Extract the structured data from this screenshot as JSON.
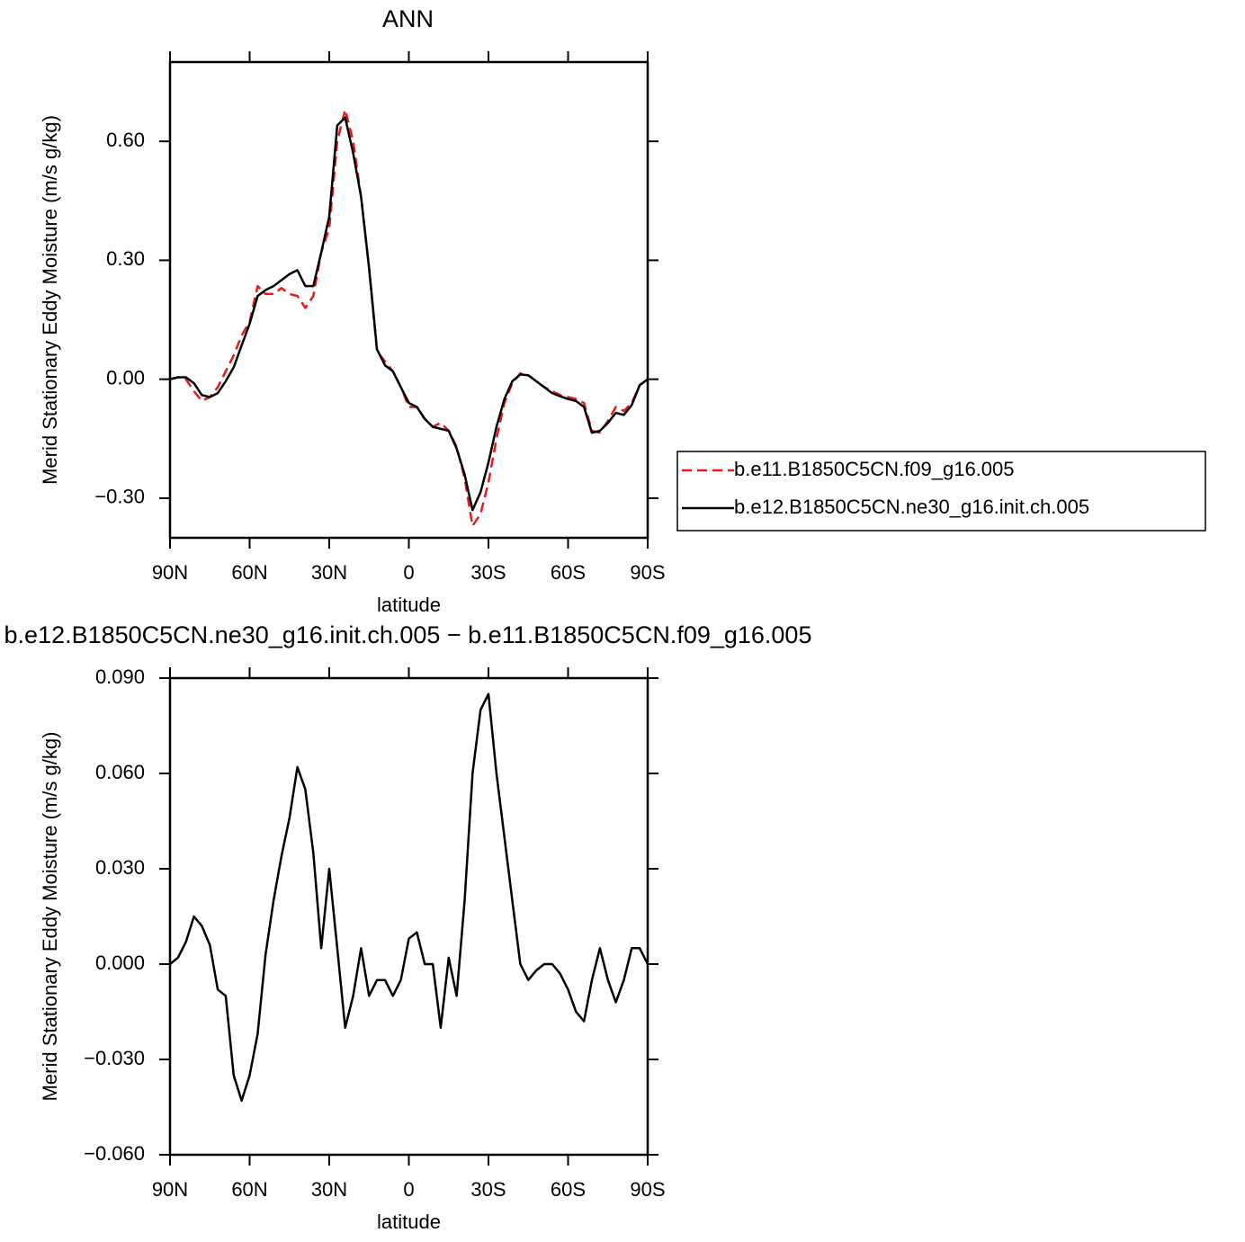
{
  "chart_data": [
    {
      "type": "line",
      "title": "ANN",
      "ylabel": "Merid Stationary Eddy Moisture (m/s g/kg)",
      "xlabel": "latitude",
      "xlim": [
        90,
        -90
      ],
      "xticks": [
        {
          "value": 90,
          "label": "90N"
        },
        {
          "value": 60,
          "label": "60N"
        },
        {
          "value": 30,
          "label": "30N"
        },
        0,
        {
          "value": -30,
          "label": "30S"
        },
        {
          "value": -60,
          "label": "60S"
        },
        {
          "value": -90,
          "label": "90S"
        }
      ],
      "ylim": [
        -0.4,
        0.8
      ],
      "yticks": [
        {
          "value": -0.3,
          "label": "−0.30"
        },
        {
          "value": 0,
          "label": "0.00"
        },
        {
          "value": 0.3,
          "label": "0.30"
        },
        {
          "value": 0.6,
          "label": "0.60"
        }
      ],
      "legend": "right",
      "x": [
        90,
        87,
        84,
        81,
        78,
        75,
        72,
        69,
        66,
        63,
        60,
        57,
        54,
        51,
        48,
        45,
        42,
        39,
        36,
        33,
        30,
        27,
        24,
        21,
        18,
        15,
        12,
        9,
        6,
        3,
        0,
        -3,
        -6,
        -9,
        -12,
        -15,
        -18,
        -21,
        -24,
        -27,
        -30,
        -33,
        -36,
        -39,
        -42,
        -45,
        -48,
        -51,
        -54,
        -57,
        -60,
        -63,
        -66,
        -69,
        -72,
        -75,
        -78,
        -81,
        -84,
        -87,
        -90
      ],
      "series": [
        {
          "name": "b.e11.B1850C5CN.f09_g16.005",
          "color": "#e41a1c",
          "style": "dashed",
          "values": [
            0,
            0.005,
            0.0,
            -0.03,
            -0.055,
            -0.045,
            -0.02,
            0.02,
            0.06,
            0.11,
            0.145,
            0.235,
            0.215,
            0.215,
            0.23,
            0.215,
            0.21,
            0.18,
            0.21,
            0.32,
            0.38,
            0.6,
            0.68,
            0.6,
            0.46,
            0.28,
            0.07,
            0.045,
            0.02,
            -0.02,
            -0.07,
            -0.07,
            -0.1,
            -0.12,
            -0.11,
            -0.13,
            -0.17,
            -0.25,
            -0.37,
            -0.34,
            -0.26,
            -0.15,
            -0.06,
            -0.01,
            0.015,
            0.01,
            -0.005,
            -0.02,
            -0.03,
            -0.04,
            -0.045,
            -0.05,
            -0.06,
            -0.13,
            -0.135,
            -0.105,
            -0.07,
            -0.08,
            -0.06,
            -0.015,
            0
          ]
        },
        {
          "name": "b.e12.B1850C5CN.ne30_g16.init.ch.005",
          "color": "#000000",
          "style": "solid",
          "values": [
            0,
            0.005,
            0.005,
            -0.01,
            -0.04,
            -0.045,
            -0.035,
            -0.005,
            0.03,
            0.085,
            0.14,
            0.21,
            0.225,
            0.235,
            0.25,
            0.265,
            0.275,
            0.235,
            0.235,
            0.32,
            0.41,
            0.64,
            0.66,
            0.57,
            0.46,
            0.28,
            0.075,
            0.035,
            0.02,
            -0.02,
            -0.06,
            -0.07,
            -0.1,
            -0.12,
            -0.125,
            -0.13,
            -0.175,
            -0.24,
            -0.33,
            -0.285,
            -0.21,
            -0.12,
            -0.05,
            -0.005,
            0.012,
            0.01,
            -0.005,
            -0.02,
            -0.035,
            -0.043,
            -0.05,
            -0.055,
            -0.07,
            -0.135,
            -0.13,
            -0.11,
            -0.085,
            -0.09,
            -0.065,
            -0.015,
            0
          ]
        }
      ]
    },
    {
      "type": "line",
      "title": "b.e12.B1850C5CN.ne30_g16.init.ch.005 − b.e11.B1850C5CN.f09_g16.005",
      "ylabel": "Merid Stationary Eddy Moisture (m/s g/kg)",
      "xlabel": "latitude",
      "xlim": [
        90,
        -90
      ],
      "xticks": [
        {
          "value": 90,
          "label": "90N"
        },
        {
          "value": 60,
          "label": "60N"
        },
        {
          "value": 30,
          "label": "30N"
        },
        0,
        {
          "value": -30,
          "label": "30S"
        },
        {
          "value": -60,
          "label": "60S"
        },
        {
          "value": -90,
          "label": "90S"
        }
      ],
      "ylim": [
        -0.06,
        0.09
      ],
      "yticks": [
        {
          "value": -0.06,
          "label": "−0.060"
        },
        {
          "value": -0.03,
          "label": "−0.030"
        },
        {
          "value": 0,
          "label": "0.000"
        },
        {
          "value": 0.03,
          "label": "0.030"
        },
        {
          "value": 0.06,
          "label": "0.060"
        },
        {
          "value": 0.09,
          "label": "0.090"
        }
      ],
      "color": "#000000",
      "x": [
        90,
        87,
        84,
        81,
        78,
        75,
        72,
        69,
        66,
        63,
        60,
        57,
        54,
        51,
        48,
        45,
        42,
        39,
        36,
        33,
        30,
        27,
        24,
        21,
        18,
        15,
        12,
        9,
        6,
        3,
        0,
        -3,
        -6,
        -9,
        -12,
        -15,
        -18,
        -21,
        -24,
        -27,
        -30,
        -33,
        -36,
        -39,
        -42,
        -45,
        -48,
        -51,
        -54,
        -57,
        -60,
        -63,
        -66,
        -69,
        -72,
        -75,
        -78,
        -81,
        -84,
        -87,
        -90
      ],
      "values": [
        0,
        0.002,
        0.007,
        0.015,
        0.012,
        0.006,
        -0.008,
        -0.01,
        -0.035,
        -0.043,
        -0.035,
        -0.022,
        0.003,
        0.02,
        0.034,
        0.046,
        0.062,
        0.055,
        0.035,
        0.005,
        0.03,
        0.005,
        -0.02,
        -0.01,
        0.005,
        -0.01,
        -0.005,
        -0.005,
        -0.01,
        -0.005,
        0.008,
        0.01,
        0.0,
        0.0,
        -0.02,
        0.002,
        -0.01,
        0.02,
        0.06,
        0.08,
        0.085,
        0.06,
        0.04,
        0.02,
        0.0,
        -0.005,
        -0.002,
        0.0,
        0.0,
        -0.003,
        -0.008,
        -0.015,
        -0.018,
        -0.005,
        0.005,
        -0.005,
        -0.012,
        -0.005,
        0.005,
        0.005,
        0
      ]
    }
  ]
}
